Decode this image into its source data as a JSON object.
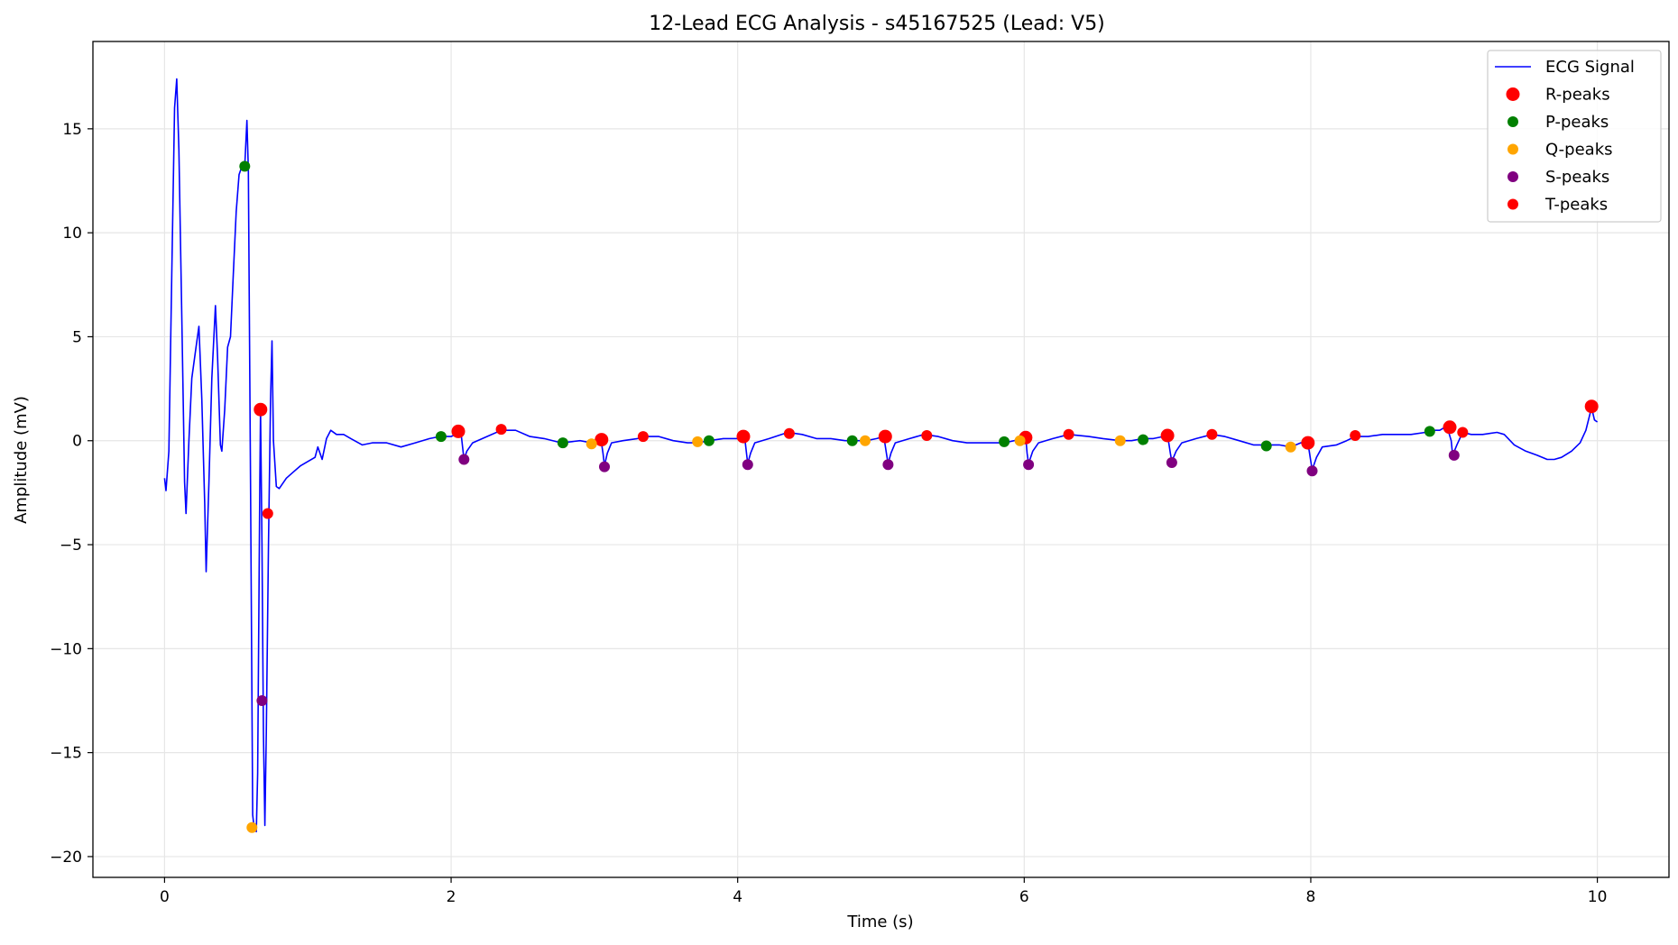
{
  "chart_data": {
    "type": "line",
    "title": "12-Lead ECG Analysis - s45167525 (Lead: V5)",
    "xlabel": "Time (s)",
    "ylabel": "Amplitude (mV)",
    "xlim": [
      -0.5,
      10.5
    ],
    "ylim": [
      -21,
      19.2
    ],
    "grid": true,
    "legend_position": "top-right",
    "x_ticks": [
      0,
      2,
      4,
      6,
      8,
      10
    ],
    "x_tick_labels": [
      "0",
      "2",
      "4",
      "6",
      "8",
      "10"
    ],
    "y_ticks": [
      15,
      10,
      5,
      0,
      -5,
      -10,
      -15,
      -20
    ],
    "y_tick_labels": [
      "15",
      "10",
      "5",
      "0",
      "−5",
      "−10",
      "−15",
      "−20"
    ],
    "series": [
      {
        "name": "ECG Signal",
        "kind": "line",
        "color": "#0000ff",
        "points": [
          [
            0.0,
            -1.8
          ],
          [
            0.01,
            -2.4
          ],
          [
            0.03,
            -0.5
          ],
          [
            0.05,
            8
          ],
          [
            0.07,
            16
          ],
          [
            0.085,
            17.4
          ],
          [
            0.1,
            14
          ],
          [
            0.12,
            6
          ],
          [
            0.14,
            -2
          ],
          [
            0.15,
            -3.5
          ],
          [
            0.17,
            0
          ],
          [
            0.19,
            3
          ],
          [
            0.22,
            4.5
          ],
          [
            0.24,
            5.5
          ],
          [
            0.26,
            2
          ],
          [
            0.28,
            -3
          ],
          [
            0.29,
            -6.3
          ],
          [
            0.31,
            -2
          ],
          [
            0.33,
            3
          ],
          [
            0.355,
            6.5
          ],
          [
            0.37,
            4
          ],
          [
            0.39,
            -0.2
          ],
          [
            0.4,
            -0.5
          ],
          [
            0.42,
            1.5
          ],
          [
            0.44,
            4.5
          ],
          [
            0.46,
            5
          ],
          [
            0.48,
            8
          ],
          [
            0.5,
            11
          ],
          [
            0.52,
            12.8
          ],
          [
            0.54,
            13.2
          ],
          [
            0.56,
            13.2
          ],
          [
            0.575,
            15.4
          ],
          [
            0.585,
            13
          ],
          [
            0.6,
            -2
          ],
          [
            0.615,
            -18
          ],
          [
            0.625,
            -18.6
          ],
          [
            0.64,
            -18.8
          ],
          [
            0.65,
            -16
          ],
          [
            0.665,
            -2
          ],
          [
            0.67,
            1.5
          ],
          [
            0.68,
            -5
          ],
          [
            0.69,
            -14
          ],
          [
            0.7,
            -18.5
          ],
          [
            0.71,
            -14
          ],
          [
            0.725,
            -5
          ],
          [
            0.74,
            2
          ],
          [
            0.75,
            4.8
          ],
          [
            0.76,
            0
          ],
          [
            0.78,
            -2.2
          ],
          [
            0.8,
            -2.3
          ],
          [
            0.85,
            -1.8
          ],
          [
            0.9,
            -1.5
          ],
          [
            0.95,
            -1.2
          ],
          [
            1.0,
            -1.0
          ],
          [
            1.05,
            -0.8
          ],
          [
            1.07,
            -0.3
          ],
          [
            1.09,
            -0.7
          ],
          [
            1.1,
            -0.9
          ],
          [
            1.13,
            0.1
          ],
          [
            1.16,
            0.5
          ],
          [
            1.2,
            0.3
          ],
          [
            1.25,
            0.3
          ],
          [
            1.3,
            0.1
          ],
          [
            1.38,
            -0.2
          ],
          [
            1.45,
            -0.1
          ],
          [
            1.55,
            -0.1
          ],
          [
            1.65,
            -0.3
          ],
          [
            1.75,
            -0.1
          ],
          [
            1.85,
            0.1
          ],
          [
            1.92,
            0.2
          ],
          [
            2.0,
            0.2
          ],
          [
            2.03,
            0.3
          ],
          [
            2.05,
            0.5
          ],
          [
            2.07,
            0.3
          ],
          [
            2.09,
            -0.9
          ],
          [
            2.11,
            -0.5
          ],
          [
            2.15,
            -0.1
          ],
          [
            2.25,
            0.2
          ],
          [
            2.35,
            0.5
          ],
          [
            2.45,
            0.5
          ],
          [
            2.55,
            0.2
          ],
          [
            2.65,
            0.1
          ],
          [
            2.77,
            -0.1
          ],
          [
            2.9,
            0
          ],
          [
            2.98,
            -0.1
          ],
          [
            3.03,
            0
          ],
          [
            3.045,
            0.1
          ],
          [
            3.06,
            -0.6
          ],
          [
            3.07,
            -1.2
          ],
          [
            3.09,
            -0.6
          ],
          [
            3.12,
            -0.1
          ],
          [
            3.2,
            0
          ],
          [
            3.3,
            0.1
          ],
          [
            3.35,
            0.2
          ],
          [
            3.45,
            0.2
          ],
          [
            3.55,
            0
          ],
          [
            3.65,
            -0.1
          ],
          [
            3.72,
            -0.1
          ],
          [
            3.8,
            0
          ],
          [
            3.9,
            0.1
          ],
          [
            4.0,
            0.1
          ],
          [
            4.03,
            0.2
          ],
          [
            4.05,
            0.1
          ],
          [
            4.07,
            -1.1
          ],
          [
            4.09,
            -0.6
          ],
          [
            4.12,
            -0.1
          ],
          [
            4.22,
            0.1
          ],
          [
            4.35,
            0.4
          ],
          [
            4.45,
            0.3
          ],
          [
            4.55,
            0.1
          ],
          [
            4.65,
            0.1
          ],
          [
            4.75,
            0
          ],
          [
            4.82,
            0
          ],
          [
            4.9,
            0
          ],
          [
            4.97,
            0.1
          ],
          [
            5.02,
            0.2
          ],
          [
            5.04,
            -0.7
          ],
          [
            5.05,
            -1.1
          ],
          [
            5.07,
            -0.6
          ],
          [
            5.1,
            -0.1
          ],
          [
            5.2,
            0.1
          ],
          [
            5.3,
            0.3
          ],
          [
            5.4,
            0.2
          ],
          [
            5.5,
            0
          ],
          [
            5.6,
            -0.1
          ],
          [
            5.7,
            -0.1
          ],
          [
            5.8,
            -0.1
          ],
          [
            5.86,
            -0.1
          ],
          [
            5.93,
            0
          ],
          [
            5.98,
            0.1
          ],
          [
            6.01,
            0.2
          ],
          [
            6.02,
            -0.6
          ],
          [
            6.03,
            -1.1
          ],
          [
            6.06,
            -0.5
          ],
          [
            6.1,
            -0.1
          ],
          [
            6.2,
            0.1
          ],
          [
            6.31,
            0.3
          ],
          [
            6.45,
            0.2
          ],
          [
            6.55,
            0.1
          ],
          [
            6.67,
            0
          ],
          [
            6.75,
            0
          ],
          [
            6.83,
            0.1
          ],
          [
            6.9,
            0.1
          ],
          [
            6.97,
            0.2
          ],
          [
            7.0,
            0.3
          ],
          [
            7.02,
            -0.6
          ],
          [
            7.03,
            -1.0
          ],
          [
            7.06,
            -0.5
          ],
          [
            7.1,
            -0.1
          ],
          [
            7.2,
            0.1
          ],
          [
            7.31,
            0.3
          ],
          [
            7.4,
            0.2
          ],
          [
            7.5,
            0
          ],
          [
            7.6,
            -0.2
          ],
          [
            7.68,
            -0.2
          ],
          [
            7.78,
            -0.2
          ],
          [
            7.86,
            -0.3
          ],
          [
            7.93,
            -0.1
          ],
          [
            7.98,
            -0.1
          ],
          [
            8.0,
            -1.0
          ],
          [
            8.01,
            -1.4
          ],
          [
            8.04,
            -0.8
          ],
          [
            8.08,
            -0.3
          ],
          [
            8.18,
            -0.2
          ],
          [
            8.25,
            0
          ],
          [
            8.31,
            0.2
          ],
          [
            8.4,
            0.2
          ],
          [
            8.5,
            0.3
          ],
          [
            8.6,
            0.3
          ],
          [
            8.7,
            0.3
          ],
          [
            8.8,
            0.4
          ],
          [
            8.83,
            0.5
          ],
          [
            8.9,
            0.5
          ],
          [
            8.95,
            0.7
          ],
          [
            8.98,
            0
          ],
          [
            8.99,
            -0.7
          ],
          [
            9.02,
            -0.2
          ],
          [
            9.06,
            0.4
          ],
          [
            9.12,
            0.3
          ],
          [
            9.2,
            0.3
          ],
          [
            9.3,
            0.4
          ],
          [
            9.35,
            0.3
          ],
          [
            9.42,
            -0.2
          ],
          [
            9.5,
            -0.5
          ],
          [
            9.58,
            -0.7
          ],
          [
            9.65,
            -0.9
          ],
          [
            9.7,
            -0.9
          ],
          [
            9.75,
            -0.8
          ],
          [
            9.82,
            -0.5
          ],
          [
            9.88,
            -0.1
          ],
          [
            9.92,
            0.5
          ],
          [
            9.96,
            1.6
          ],
          [
            9.98,
            1.0
          ],
          [
            10.0,
            0.9
          ]
        ]
      },
      {
        "name": "R-peaks",
        "kind": "markers",
        "color": "#ff0000",
        "size": "large",
        "points": [
          [
            0.67,
            1.5
          ],
          [
            2.05,
            0.45
          ],
          [
            3.05,
            0.05
          ],
          [
            4.04,
            0.2
          ],
          [
            5.03,
            0.2
          ],
          [
            6.01,
            0.15
          ],
          [
            7.0,
            0.25
          ],
          [
            7.98,
            -0.1
          ],
          [
            8.97,
            0.65
          ],
          [
            9.96,
            1.65
          ]
        ]
      },
      {
        "name": "P-peaks",
        "kind": "markers",
        "color": "#008000",
        "size": "small",
        "points": [
          [
            0.56,
            13.2
          ],
          [
            1.93,
            0.2
          ],
          [
            2.78,
            -0.1
          ],
          [
            3.8,
            0
          ],
          [
            4.8,
            0
          ],
          [
            5.86,
            -0.05
          ],
          [
            6.83,
            0.05
          ],
          [
            7.69,
            -0.25
          ],
          [
            8.83,
            0.45
          ]
        ]
      },
      {
        "name": "Q-peaks",
        "kind": "markers",
        "color": "#ffa500",
        "size": "small",
        "points": [
          [
            0.61,
            -18.6
          ],
          [
            2.98,
            -0.15
          ],
          [
            3.72,
            -0.05
          ],
          [
            4.89,
            0
          ],
          [
            5.97,
            0
          ],
          [
            6.67,
            0
          ],
          [
            7.86,
            -0.3
          ]
        ]
      },
      {
        "name": "S-peaks",
        "kind": "markers",
        "color": "#800080",
        "size": "small",
        "points": [
          [
            0.68,
            -12.5
          ],
          [
            2.09,
            -0.9
          ],
          [
            3.07,
            -1.25
          ],
          [
            4.07,
            -1.15
          ],
          [
            5.05,
            -1.15
          ],
          [
            6.03,
            -1.15
          ],
          [
            7.03,
            -1.05
          ],
          [
            8.01,
            -1.45
          ],
          [
            9.0,
            -0.7
          ]
        ]
      },
      {
        "name": "T-peaks",
        "kind": "markers",
        "color": "#ff0000",
        "size": "small",
        "points": [
          [
            0.72,
            -3.5
          ],
          [
            2.35,
            0.55
          ],
          [
            3.34,
            0.2
          ],
          [
            4.36,
            0.35
          ],
          [
            5.32,
            0.25
          ],
          [
            6.31,
            0.3
          ],
          [
            7.31,
            0.3
          ],
          [
            8.31,
            0.25
          ],
          [
            9.06,
            0.4
          ]
        ]
      }
    ]
  }
}
